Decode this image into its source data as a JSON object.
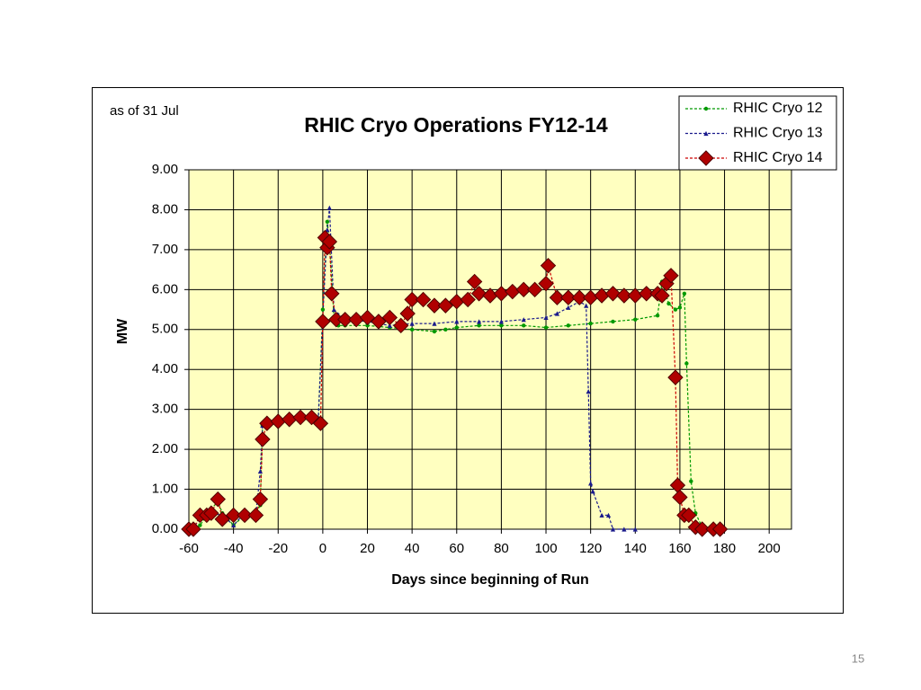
{
  "chart_data": {
    "type": "line",
    "title": "RHIC Cryo Operations FY12-14",
    "annotation": "as of 31 Jul",
    "x_label": "Days since beginning of Run",
    "y_label": "MW",
    "xlim": [
      -60,
      210
    ],
    "ylim": [
      0,
      9
    ],
    "xticks": [
      -60,
      -40,
      -20,
      0,
      20,
      40,
      60,
      80,
      100,
      120,
      140,
      160,
      180,
      200
    ],
    "yticks": [
      {
        "value": 0,
        "label": "0.00"
      },
      {
        "value": 1,
        "label": "1.00"
      },
      {
        "value": 2,
        "label": "2.00"
      },
      {
        "value": 3,
        "label": "3.00"
      },
      {
        "value": 4,
        "label": "4.00"
      },
      {
        "value": 5,
        "label": "5.00"
      },
      {
        "value": 6,
        "label": "6.00"
      },
      {
        "value": 7,
        "label": "7.00"
      },
      {
        "value": 8,
        "label": "8.00"
      },
      {
        "value": 9,
        "label": "9.00"
      }
    ],
    "grid": true,
    "legend": "top-right",
    "background": "#ffffc0",
    "series": [
      {
        "name": "RHIC Cryo 12",
        "color": "#009900",
        "marker": "circle",
        "line_style": "dashed",
        "x": [
          -58,
          -55,
          -50,
          -47,
          -45,
          -40,
          -35,
          -30,
          -28,
          -27,
          -25,
          -20,
          -10,
          -2,
          0,
          2,
          3,
          5,
          7,
          10,
          20,
          30,
          40,
          50,
          55,
          60,
          70,
          80,
          90,
          100,
          110,
          120,
          130,
          140,
          150,
          152,
          155,
          158,
          160,
          162,
          163,
          165,
          167,
          170,
          175,
          178
        ],
        "values": [
          0,
          0.1,
          0.5,
          0.7,
          0.4,
          0.1,
          0.35,
          0.4,
          0.6,
          2.6,
          2.65,
          2.7,
          2.75,
          2.75,
          5.5,
          7.7,
          7.2,
          5.3,
          5.1,
          5.1,
          5.1,
          5.05,
          5.0,
          4.95,
          5.0,
          5.05,
          5.1,
          5.1,
          5.1,
          5.05,
          5.1,
          5.15,
          5.2,
          5.25,
          5.35,
          6.2,
          5.65,
          5.5,
          5.55,
          5.9,
          4.15,
          1.2,
          0.4,
          0.05,
          0,
          0
        ]
      },
      {
        "name": "RHIC Cryo 13",
        "color": "#1a1a8c",
        "marker": "triangle",
        "line_style": "dashed",
        "x": [
          -58,
          -55,
          -50,
          -45,
          -40,
          -35,
          -30,
          -28,
          -27,
          -25,
          -20,
          -10,
          -2,
          0,
          2,
          3,
          5,
          10,
          20,
          30,
          40,
          50,
          60,
          70,
          80,
          90,
          100,
          105,
          110,
          115,
          118,
          119,
          120,
          121,
          125,
          128,
          130,
          135,
          140
        ],
        "values": [
          0,
          0.3,
          0.4,
          0.35,
          0.1,
          0.4,
          0.35,
          1.45,
          2.6,
          2.7,
          2.72,
          2.78,
          2.8,
          5.3,
          7.5,
          8.05,
          5.5,
          5.25,
          5.2,
          5.1,
          5.15,
          5.15,
          5.2,
          5.2,
          5.2,
          5.25,
          5.3,
          5.4,
          5.55,
          5.7,
          5.6,
          3.45,
          1.15,
          0.95,
          0.35,
          0.35,
          0,
          0,
          0
        ]
      },
      {
        "name": "RHIC Cryo 14",
        "color": "#cc0000",
        "marker": "diamond",
        "line_style": "dashed",
        "x": [
          -60,
          -58,
          -55,
          -52,
          -50,
          -47,
          -45,
          -40,
          -35,
          -30,
          -28,
          -27,
          -25,
          -20,
          -15,
          -10,
          -5,
          -1,
          0,
          1,
          2,
          3,
          4,
          6,
          10,
          15,
          20,
          25,
          30,
          35,
          38,
          40,
          45,
          50,
          55,
          60,
          65,
          68,
          70,
          75,
          80,
          85,
          90,
          95,
          100,
          101,
          105,
          110,
          115,
          120,
          125,
          130,
          135,
          140,
          145,
          150,
          152,
          154,
          156,
          158,
          159,
          160,
          162,
          164,
          167,
          170,
          175,
          178
        ],
        "values": [
          0,
          0,
          0.35,
          0.35,
          0.4,
          0.75,
          0.25,
          0.35,
          0.35,
          0.35,
          0.75,
          2.25,
          2.65,
          2.7,
          2.75,
          2.8,
          2.8,
          2.65,
          5.2,
          7.3,
          7.05,
          7.2,
          5.9,
          5.25,
          5.25,
          5.25,
          5.3,
          5.2,
          5.3,
          5.1,
          5.4,
          5.75,
          5.75,
          5.6,
          5.6,
          5.7,
          5.75,
          6.2,
          5.9,
          5.85,
          5.9,
          5.95,
          6.0,
          6.0,
          6.15,
          6.6,
          5.8,
          5.8,
          5.8,
          5.8,
          5.85,
          5.9,
          5.85,
          5.85,
          5.9,
          5.9,
          5.85,
          6.15,
          6.35,
          3.8,
          1.1,
          0.8,
          0.35,
          0.35,
          0.05,
          0,
          0,
          0
        ]
      }
    ]
  },
  "page_number": "15"
}
